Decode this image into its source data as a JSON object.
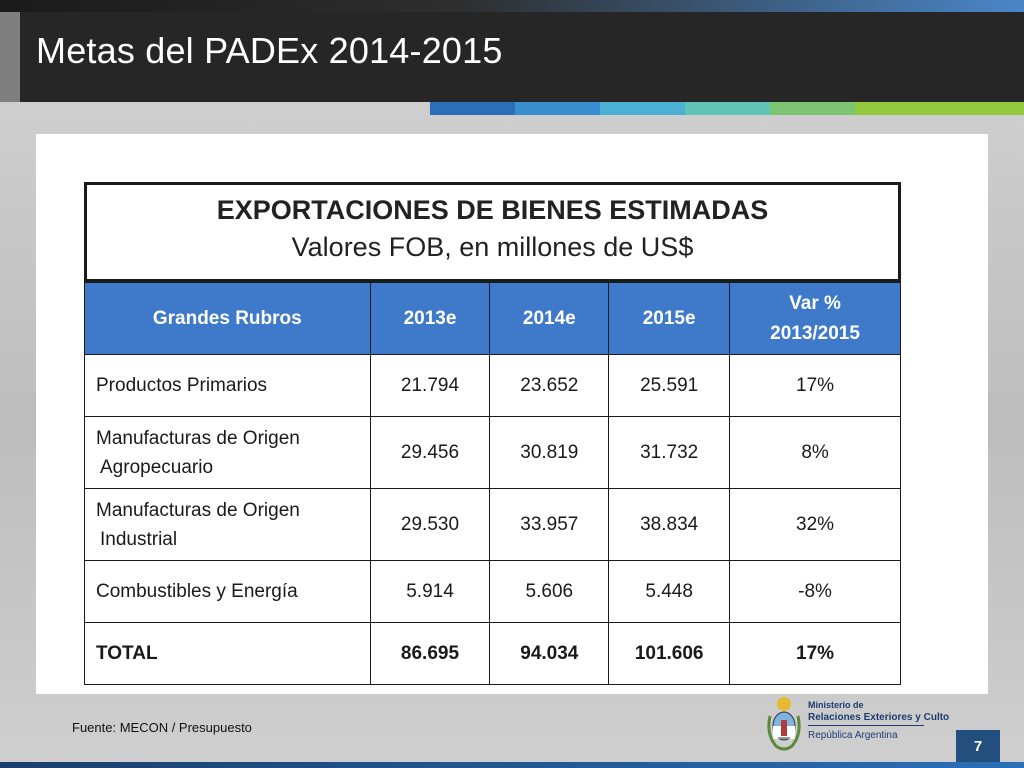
{
  "slide": {
    "title": "Metas del PADEx 2014-2015",
    "number": "7"
  },
  "accent_bars": [
    "#2b6fba",
    "#3a8fd0",
    "#4bb0d4",
    "#5fc3b7",
    "#7cc472",
    "#94c83e"
  ],
  "table": {
    "title": "EXPORTACIONES DE BIENES ESTIMADAS",
    "subtitle": "Valores FOB, en millones de US$",
    "header_color": "#3f79c9",
    "headers": [
      "Grandes Rubros",
      "2013e",
      "2014e",
      "2015e",
      "Var % 2013/2015"
    ],
    "rows": [
      {
        "label_1": "Productos Primarios",
        "label_2": "",
        "v2013": "21.794",
        "v2014": "23.652",
        "v2015": "25.591",
        "var": "17%"
      },
      {
        "label_1": "Manufacturas de Origen",
        "label_2": "Agropecuario",
        "v2013": "29.456",
        "v2014": "30.819",
        "v2015": "31.732",
        "var": "8%"
      },
      {
        "label_1": "Manufacturas de Origen",
        "label_2": "Industrial",
        "v2013": "29.530",
        "v2014": "33.957",
        "v2015": "38.834",
        "var": "32%"
      },
      {
        "label_1": "Combustibles y Energía",
        "label_2": "",
        "v2013": "5.914",
        "v2014": "5.606",
        "v2015": "5.448",
        "var": "-8%"
      },
      {
        "label_1": "TOTAL",
        "label_2": "",
        "v2013": "86.695",
        "v2014": "94.034",
        "v2015": "101.606",
        "var": "17%"
      }
    ]
  },
  "footer": {
    "source": "Fuente: MECON / Presupuesto",
    "ministry_line1": "Ministerio de",
    "ministry_line2": "Relaciones Exteriores y Culto",
    "ministry_line3": "República Argentina"
  }
}
